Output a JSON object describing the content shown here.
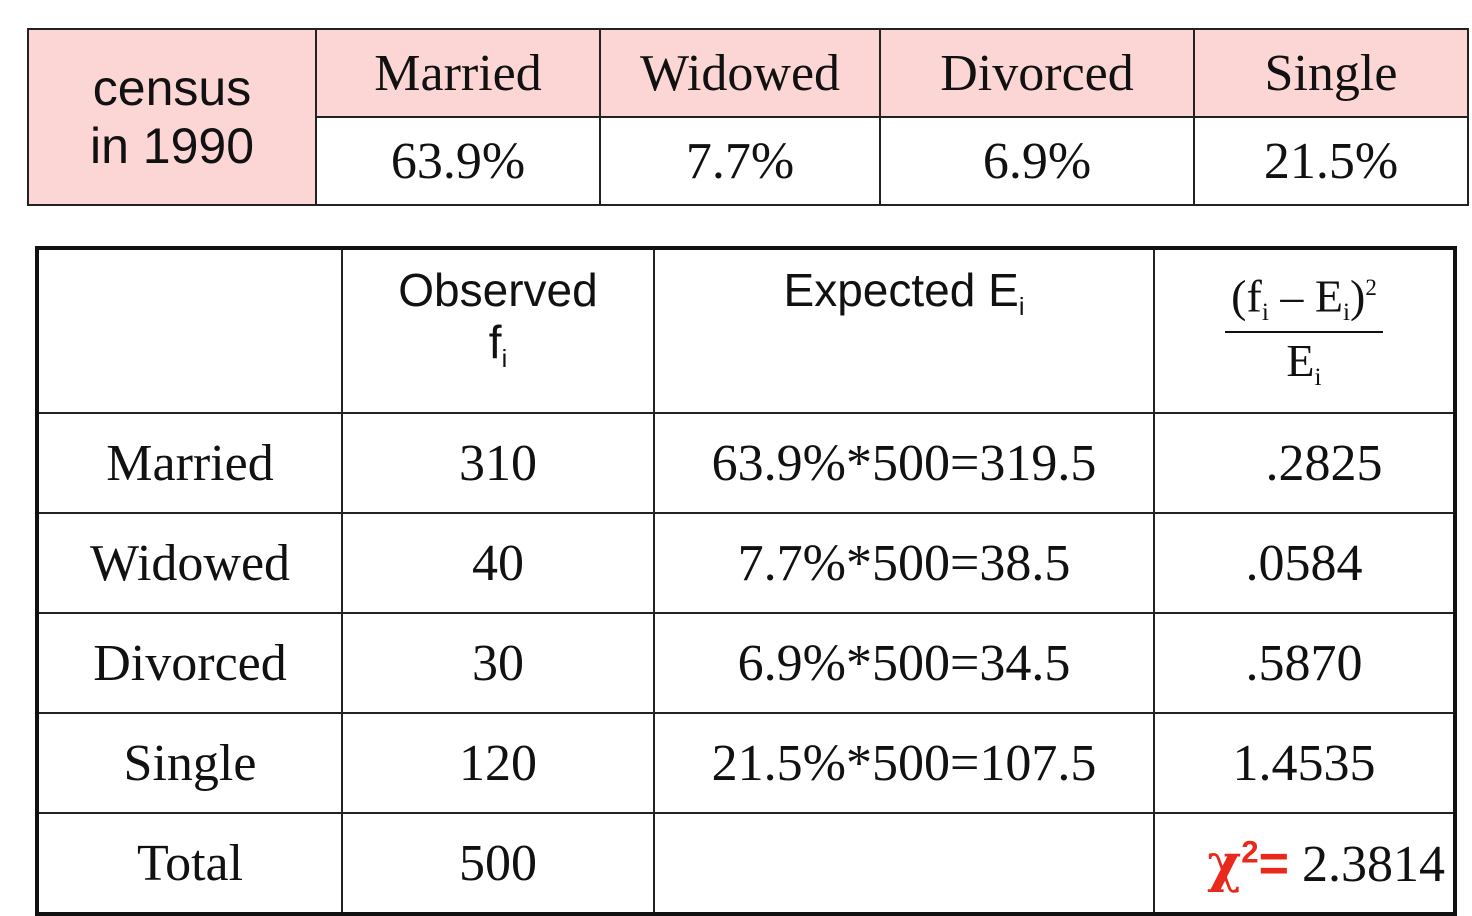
{
  "census": {
    "label_line1": "census",
    "label_line2": "in 1990",
    "categories": [
      "Married",
      "Widowed",
      "Divorced",
      "Single"
    ],
    "percents": [
      "63.9%",
      "7.7%",
      "6.9%",
      "21.5%"
    ]
  },
  "chi_table": {
    "headers": {
      "observed_line1": "Observed",
      "observed_symbol": "f",
      "observed_sub": "i",
      "expected_text": "Expected E",
      "expected_sub": "i",
      "formula_num_open": "(f",
      "formula_num_sub1": "i",
      "formula_num_mid": " – E",
      "formula_num_sub2": "i",
      "formula_num_close": ")",
      "formula_num_exp": "2",
      "formula_den": "E",
      "formula_den_sub": "i"
    },
    "rows": [
      {
        "category": "Married",
        "observed": "310",
        "expected": "63.9%*500=319.5",
        "contribution": ".2825"
      },
      {
        "category": "Widowed",
        "observed": "40",
        "expected": "7.7%*500=38.5",
        "contribution": ".0584"
      },
      {
        "category": "Divorced",
        "observed": "30",
        "expected": "6.9%*500=34.5",
        "contribution": ".5870"
      },
      {
        "category": "Single",
        "observed": "120",
        "expected": "21.5%*500=107.5",
        "contribution": "1.4535"
      }
    ],
    "total": {
      "label": "Total",
      "observed": "500",
      "chi_symbol": "χ",
      "chi_exp": "2",
      "chi_equals": "=",
      "chi_value": "2.3814"
    }
  },
  "colors": {
    "header_fill": "#fcd6d4",
    "chi_accent": "#e8291c"
  }
}
